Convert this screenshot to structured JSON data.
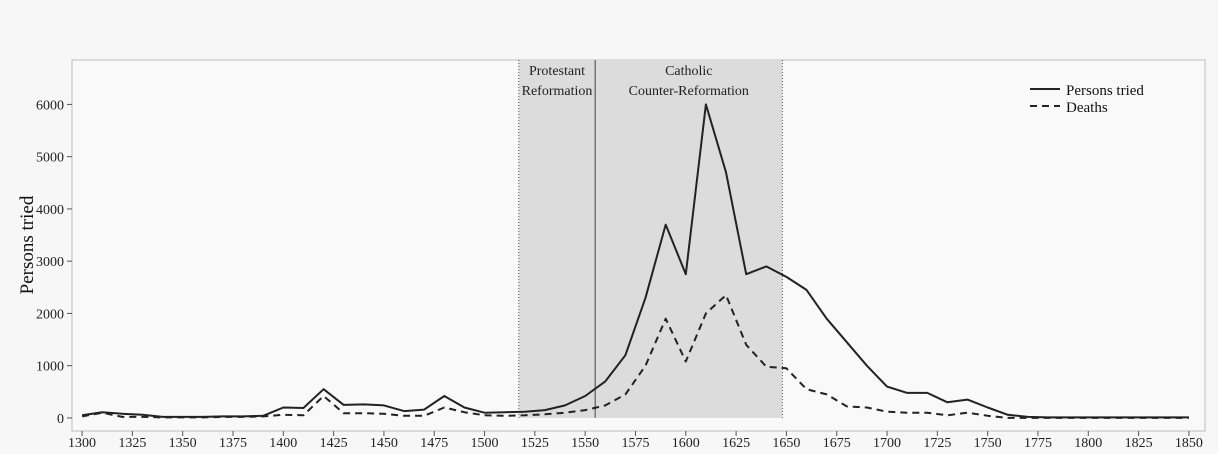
{
  "chart_data": {
    "type": "line",
    "title": "",
    "xlabel": "",
    "ylabel": "Persons tried",
    "xlim": [
      1295,
      1858
    ],
    "ylim": [
      -250,
      6850
    ],
    "x_ticks": [
      1300,
      1325,
      1350,
      1375,
      1400,
      1425,
      1450,
      1475,
      1500,
      1525,
      1550,
      1575,
      1600,
      1625,
      1650,
      1675,
      1700,
      1725,
      1750,
      1775,
      1800,
      1825,
      1850
    ],
    "y_ticks": [
      0,
      1000,
      2000,
      3000,
      4000,
      5000,
      6000
    ],
    "grid": false,
    "legend_position": "top-right",
    "shaded_periods": [
      {
        "label_lines": [
          "Protestant",
          "Reformation"
        ],
        "start": 1517,
        "end": 1555
      },
      {
        "label_lines": [
          "Catholic",
          "Counter-Reformation"
        ],
        "start": 1555,
        "end": 1648
      }
    ],
    "series": [
      {
        "name": "Persons tried",
        "style": "solid",
        "x": [
          1300,
          1310,
          1320,
          1330,
          1340,
          1350,
          1360,
          1370,
          1380,
          1390,
          1400,
          1410,
          1420,
          1430,
          1440,
          1450,
          1460,
          1470,
          1480,
          1490,
          1500,
          1510,
          1520,
          1530,
          1540,
          1550,
          1560,
          1570,
          1580,
          1590,
          1600,
          1610,
          1620,
          1630,
          1640,
          1650,
          1660,
          1670,
          1680,
          1690,
          1700,
          1710,
          1720,
          1730,
          1740,
          1750,
          1760,
          1770,
          1780,
          1790,
          1800,
          1810,
          1820,
          1830,
          1840,
          1850
        ],
        "values": [
          50,
          110,
          80,
          60,
          20,
          20,
          20,
          30,
          30,
          40,
          200,
          190,
          550,
          250,
          260,
          240,
          130,
          160,
          420,
          200,
          100,
          110,
          120,
          150,
          240,
          420,
          700,
          1200,
          2300,
          3700,
          2750,
          6000,
          4700,
          2750,
          2900,
          2700,
          2450,
          1900,
          1450,
          1000,
          600,
          480,
          480,
          300,
          350,
          200,
          60,
          20,
          10,
          10,
          10,
          10,
          10,
          10,
          10,
          10
        ]
      },
      {
        "name": "Deaths",
        "style": "dashed",
        "x": [
          1300,
          1310,
          1320,
          1330,
          1340,
          1350,
          1360,
          1370,
          1380,
          1390,
          1400,
          1410,
          1420,
          1430,
          1440,
          1450,
          1460,
          1470,
          1480,
          1490,
          1500,
          1510,
          1520,
          1530,
          1540,
          1550,
          1560,
          1570,
          1580,
          1590,
          1600,
          1610,
          1620,
          1630,
          1640,
          1650,
          1660,
          1670,
          1680,
          1690,
          1700,
          1710,
          1720,
          1730,
          1740,
          1750,
          1760,
          1770,
          1780,
          1790,
          1800,
          1810,
          1820,
          1830,
          1840,
          1850
        ],
        "values": [
          30,
          100,
          20,
          20,
          10,
          10,
          10,
          20,
          20,
          30,
          60,
          50,
          420,
          90,
          90,
          80,
          40,
          40,
          200,
          110,
          50,
          40,
          50,
          70,
          100,
          150,
          240,
          450,
          1000,
          1900,
          1080,
          2000,
          2350,
          1400,
          980,
          950,
          550,
          450,
          220,
          200,
          120,
          100,
          100,
          50,
          100,
          40,
          0,
          0,
          0,
          0,
          0,
          0,
          0,
          0,
          0,
          0
        ]
      }
    ]
  }
}
